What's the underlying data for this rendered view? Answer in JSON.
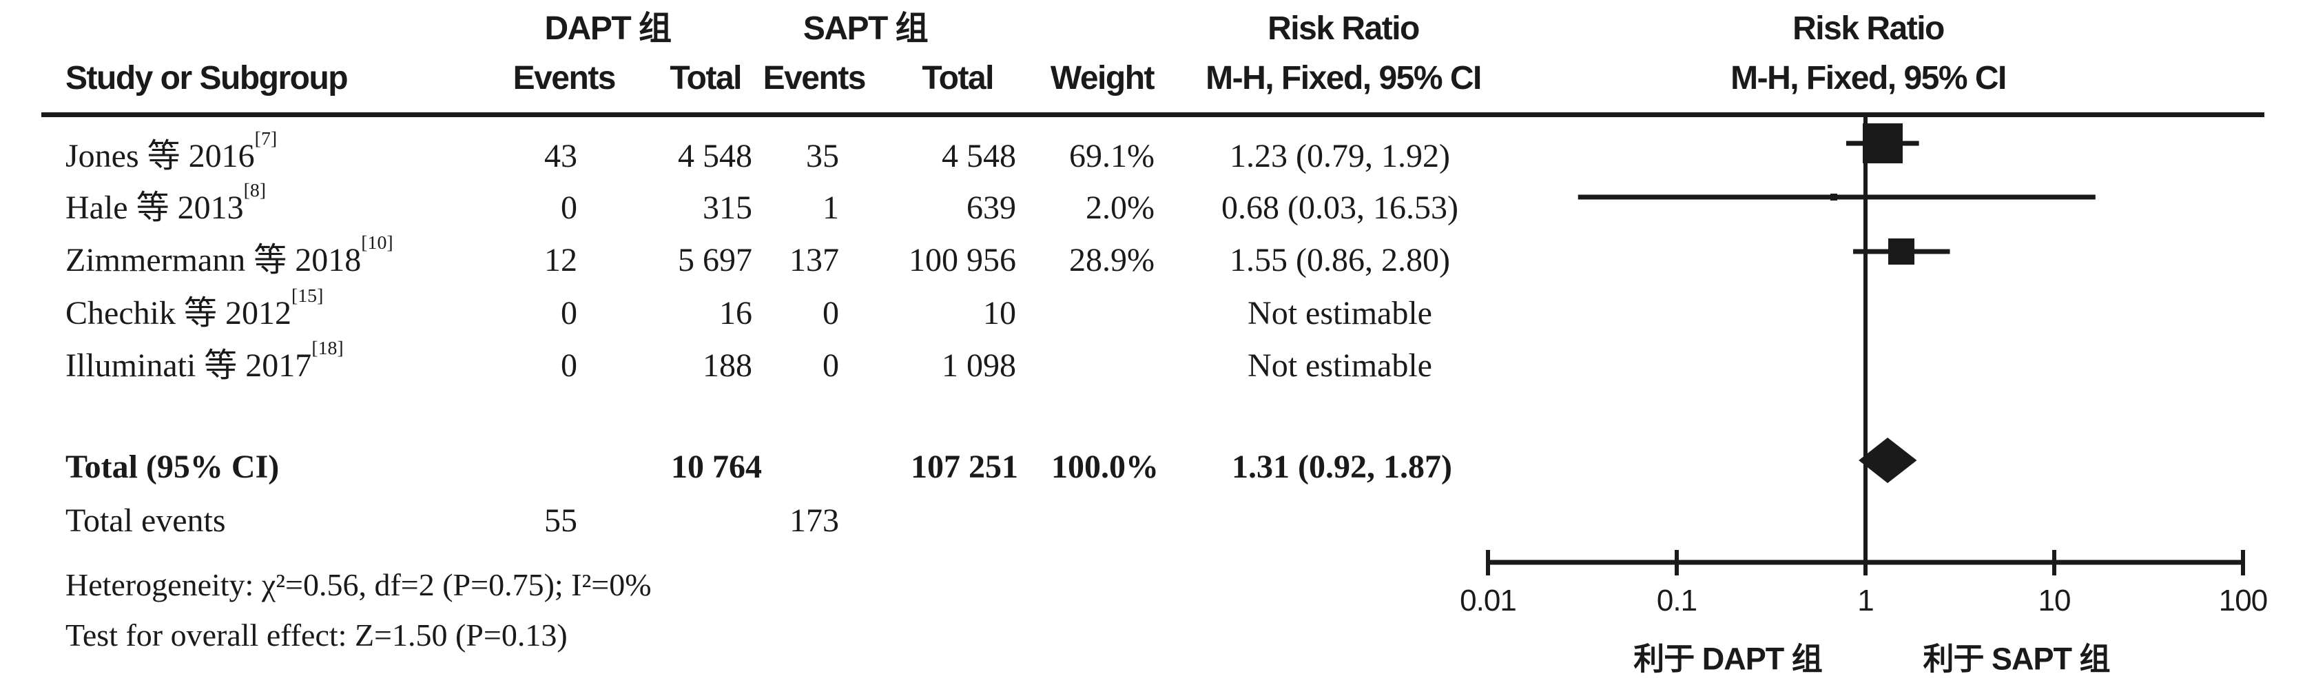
{
  "colors": {
    "ink": "#1a1a1a",
    "background": "#ffffff"
  },
  "header": {
    "group_dapt": "DAPT 组",
    "group_sapt": "SAPT 组",
    "risk_ratio": "Risk Ratio",
    "mh_fixed": "M-H, Fixed, 95% CI",
    "study_or_subgroup": "Study or Subgroup",
    "events": "Events",
    "total": "Total",
    "weight": "Weight"
  },
  "chart_data": {
    "type": "forest",
    "effect_measure": "Risk Ratio",
    "method": "M-H, Fixed, 95% CI",
    "x_axis": {
      "scale": "log10",
      "ticks": [
        0.01,
        0.1,
        1,
        10,
        100
      ],
      "tick_labels": [
        "0.01",
        "0.1",
        "1",
        "10",
        "100"
      ]
    },
    "favor_left": "利于 DAPT 组",
    "favor_right": "利于 SAPT 组",
    "studies": [
      {
        "name": "Jones 等 2016",
        "ref": "[7]",
        "dapt_events": "43",
        "dapt_total": "4 548",
        "sapt_events": "35",
        "sapt_total": "4 548",
        "weight_label": "69.1%",
        "weight": 69.1,
        "ci_label": "1.23 (0.79, 1.92)",
        "rr": 1.23,
        "lo": 0.79,
        "hi": 1.92,
        "estimable": true
      },
      {
        "name": "Hale 等 2013",
        "ref": "[8]",
        "dapt_events": "0",
        "dapt_total": "315",
        "sapt_events": "1",
        "sapt_total": "639",
        "weight_label": "2.0%",
        "weight": 2.0,
        "ci_label": "0.68 (0.03, 16.53)",
        "rr": 0.68,
        "lo": 0.03,
        "hi": 16.53,
        "estimable": true
      },
      {
        "name": "Zimmermann 等 2018",
        "ref": "[10]",
        "dapt_events": "12",
        "dapt_total": "5 697",
        "sapt_events": "137",
        "sapt_total": "100 956",
        "weight_label": "28.9%",
        "weight": 28.9,
        "ci_label": "1.55 (0.86, 2.80)",
        "rr": 1.55,
        "lo": 0.86,
        "hi": 2.8,
        "estimable": true
      },
      {
        "name": "Chechik 等 2012",
        "ref": "[15]",
        "dapt_events": "0",
        "dapt_total": "16",
        "sapt_events": "0",
        "sapt_total": "10",
        "weight_label": "",
        "weight": null,
        "ci_label": "Not estimable",
        "rr": null,
        "lo": null,
        "hi": null,
        "estimable": false
      },
      {
        "name": "Illuminati 等 2017",
        "ref": "[18]",
        "dapt_events": "0",
        "dapt_total": "188",
        "sapt_events": "0",
        "sapt_total": "1 098",
        "weight_label": "",
        "weight": null,
        "ci_label": "Not estimable",
        "rr": null,
        "lo": null,
        "hi": null,
        "estimable": false
      }
    ],
    "total": {
      "label": "Total (95% CI)",
      "dapt_total": "10 764",
      "sapt_total": "107 251",
      "weight_label": "100.0%",
      "ci_label": "1.31 (0.92, 1.87)",
      "rr": 1.31,
      "lo": 0.92,
      "hi": 1.87
    },
    "total_events": {
      "label": "Total events",
      "dapt": "55",
      "sapt": "173"
    },
    "heterogeneity": "Heterogeneity: χ²=0.56, df=2 (P=0.75); I²=0%",
    "overall_effect": "Test for overall effect: Z=1.50 (P=0.13)"
  }
}
